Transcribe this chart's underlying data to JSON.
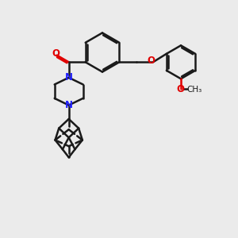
{
  "bg_color": "#ebebeb",
  "bond_color": "#1a1a1a",
  "N_color": "#2020ff",
  "O_color": "#e00000",
  "lw": 1.8,
  "figsize": [
    3.0,
    3.0
  ],
  "dpi": 100,
  "xlim": [
    0,
    10
  ],
  "ylim": [
    0,
    10
  ]
}
